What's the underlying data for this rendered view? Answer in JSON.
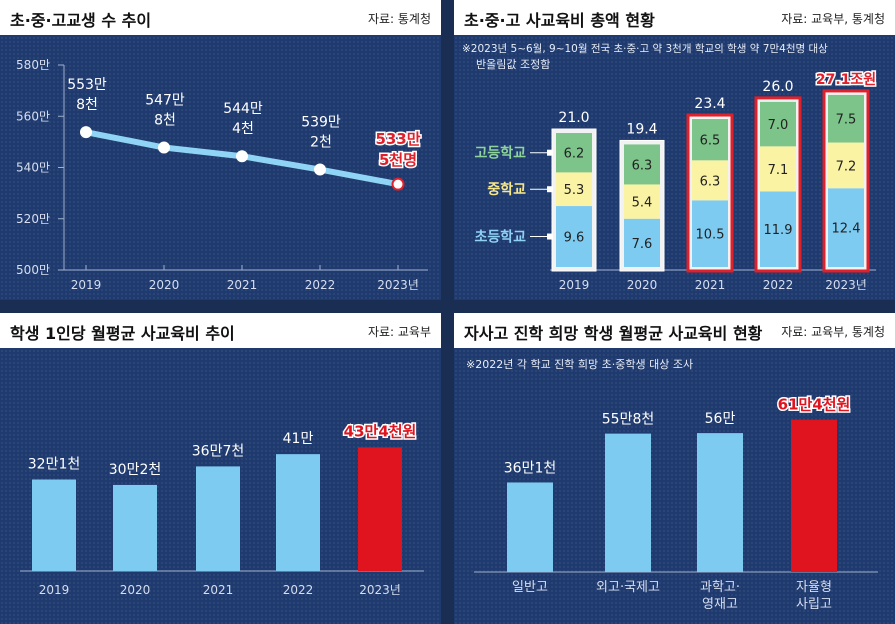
{
  "panels": {
    "tl": {
      "title": "초·중·고교생 수 추이",
      "source": "자료: 통계청"
    },
    "tr": {
      "title": "초·중·고 사교육비 총액 현황",
      "source": "자료: 교육부, 통계청",
      "note1": "※2023년 5~6월, 9~10월 전국 초·중·고 약 3천개 학교의 학생 약 7만4천명 대상",
      "note2": "반올림값 조정함"
    },
    "bl": {
      "title": "학생 1인당 월평균 사교육비 추이",
      "source": "자료: 교육부"
    },
    "br": {
      "title": "자사고 진학 희망 학생 월평균 사교육비 현황",
      "source": "자료: 교육부, 통계청",
      "note1": "※2022년 각 학교 진학 희망 초·중학생 대상 조사"
    }
  },
  "chart_data": [
    {
      "type": "line",
      "title": "초·중·고교생 수 추이",
      "categories": [
        "2019",
        "2020",
        "2021",
        "2022",
        "2023년"
      ],
      "values": [
        5538,
        5478,
        5444,
        5392,
        5335
      ],
      "unit": "천명",
      "value_labels": [
        [
          "553만",
          "8천"
        ],
        [
          "547만",
          "8천"
        ],
        [
          "544만",
          "4천"
        ],
        [
          "539만",
          "2천"
        ],
        [
          "533만",
          "5천명"
        ]
      ],
      "y_ticks": [
        5000,
        5200,
        5400,
        5600,
        5800
      ],
      "y_tick_labels": [
        "500만",
        "520만",
        "540만",
        "560만",
        "580만"
      ],
      "ylim": [
        5000,
        5800
      ],
      "colors": {
        "line": "#8fd4f5",
        "highlight": "#e0202a"
      }
    },
    {
      "type": "bar",
      "stacked": true,
      "title": "초·중·고 사교육비 총액 현황",
      "categories": [
        "2019",
        "2020",
        "2021",
        "2022",
        "2023년"
      ],
      "series": [
        {
          "name": "초등학교",
          "values": [
            9.6,
            7.6,
            10.5,
            11.9,
            12.4
          ],
          "color": "#7ecbf2",
          "label_color": "#8fd0f5"
        },
        {
          "name": "중학교",
          "values": [
            5.3,
            5.4,
            6.3,
            7.1,
            7.2
          ],
          "color": "#fbf3a4",
          "label_color": "#f7e88a"
        },
        {
          "name": "고등학교",
          "values": [
            6.2,
            6.3,
            6.5,
            7.0,
            7.5
          ],
          "color": "#7cc48a",
          "label_color": "#8ed39a"
        }
      ],
      "totals": [
        "21.0",
        "19.4",
        "23.4",
        "26.0",
        "27.1조원"
      ],
      "highlight_from": 2,
      "colors": {
        "border": "#e0202a"
      }
    },
    {
      "type": "bar",
      "title": "학생 1인당 월평균 사교육비 추이",
      "categories": [
        "2019",
        "2020",
        "2021",
        "2022",
        "2023년"
      ],
      "values": [
        321,
        302,
        367,
        410,
        434
      ],
      "unit": "천원",
      "value_labels": [
        "32만1천",
        "30만2천",
        "36만7천",
        "41만",
        "43만4천원"
      ],
      "colors": {
        "bar": "#7ecbf2",
        "highlight": "#e0141e"
      }
    },
    {
      "type": "bar",
      "title": "자사고 진학 희망 학생 월평균 사교육비 현황",
      "categories": [
        [
          "일반고"
        ],
        [
          "외고·국제고"
        ],
        [
          "과학고·",
          "영재고"
        ],
        [
          "자율형",
          "사립고"
        ]
      ],
      "values": [
        361,
        558,
        560,
        614
      ],
      "unit": "천원",
      "value_labels": [
        "36만1천",
        "55만8천",
        "56만",
        "61만4천원"
      ],
      "colors": {
        "bar": "#7ecbf2",
        "highlight": "#e0141e"
      }
    }
  ]
}
